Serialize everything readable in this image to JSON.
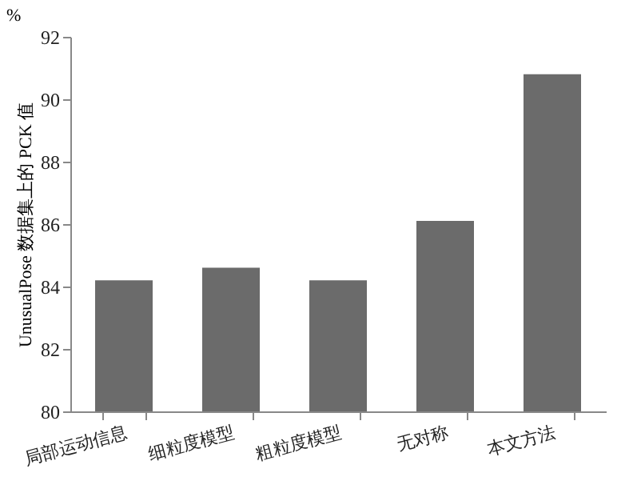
{
  "chart_data": {
    "type": "bar",
    "ylabel": "UnusualPose 数据集上的 PCK 值",
    "annotations": [
      "%"
    ],
    "categories": [
      "局部运动信息",
      "细粒度模型",
      "粗粒度模型",
      "无对称",
      "本文方法"
    ],
    "values": [
      84.2,
      84.6,
      84.2,
      86.1,
      90.8
    ],
    "color": "#6b6b6b",
    "ylim": [
      80,
      92
    ],
    "yticks": [
      80,
      82,
      84,
      86,
      88,
      90,
      92
    ],
    "grid": false
  }
}
